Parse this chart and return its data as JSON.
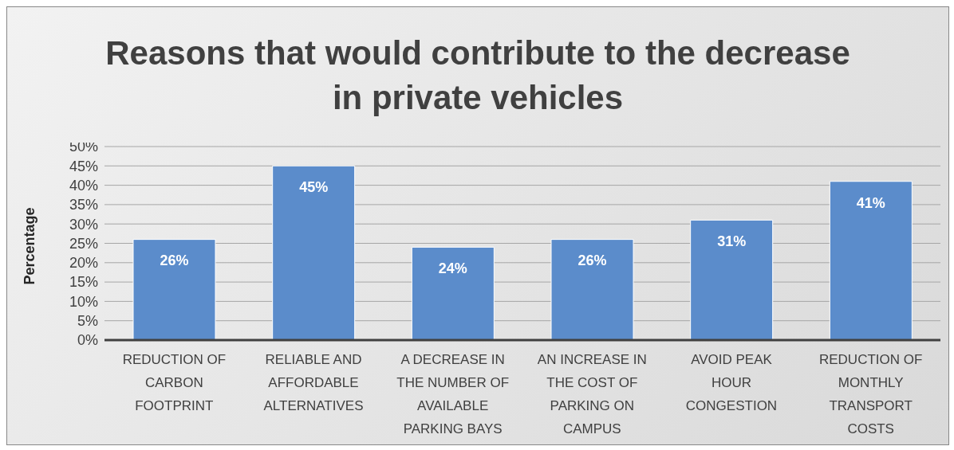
{
  "chart_data": {
    "type": "bar",
    "title": "Reasons that would contribute to the decrease in private vehicles",
    "ylabel": "Percentage",
    "categories": [
      "REDUCTION OF CARBON FOOTPRINT",
      "RELIABLE AND AFFORDABLE ALTERNATIVES",
      "A DECREASE IN THE NUMBER OF AVAILABLE PARKING BAYS",
      "AN INCREASE IN THE COST OF PARKING ON CAMPUS",
      "AVOID PEAK HOUR CONGESTION",
      "REDUCTION OF MONTHLY TRANSPORT COSTS"
    ],
    "values": [
      26,
      45,
      24,
      26,
      31,
      41
    ],
    "color": "#5b8ccb",
    "ylim": [
      0,
      50
    ],
    "yticks": [
      {
        "value": 0,
        "label": "0%"
      },
      {
        "value": 5,
        "label": "5%"
      },
      {
        "value": 10,
        "label": "10%"
      },
      {
        "value": 15,
        "label": "15%"
      },
      {
        "value": 20,
        "label": "20%"
      },
      {
        "value": 25,
        "label": "25%"
      },
      {
        "value": 30,
        "label": "30%"
      },
      {
        "value": 35,
        "label": "35%"
      },
      {
        "value": 40,
        "label": "40%"
      },
      {
        "value": 45,
        "label": "45%"
      },
      {
        "value": 50,
        "label": "50%"
      }
    ],
    "value_labels": [
      "26%",
      "45%",
      "24%",
      "26%",
      "31%",
      "41%"
    ],
    "grid": "y"
  }
}
